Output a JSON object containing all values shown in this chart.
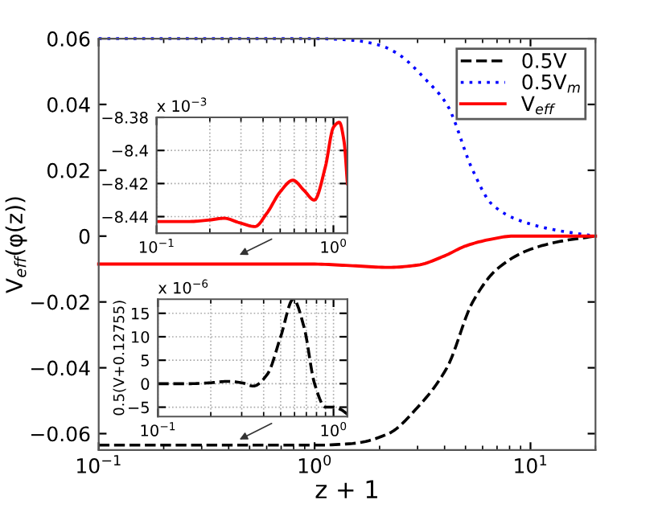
{
  "chart_data": [
    {
      "type": "line",
      "xlabel": "z + 1",
      "ylabel": "V$_{eff}$(φ(z))",
      "log": "x",
      "xlim": [
        0.1,
        20
      ],
      "ylim": [
        -0.065,
        0.06
      ],
      "xticks": [
        {
          "value": 0.1,
          "label": "10$^{−1}$"
        },
        {
          "value": 1,
          "label": "10$^{0}$"
        },
        {
          "value": 10,
          "label": "10$^{1}$"
        }
      ],
      "yticks": [
        {
          "value": -0.06,
          "label": "−0.06"
        },
        {
          "value": -0.04,
          "label": "−0.04"
        },
        {
          "value": -0.02,
          "label": "−0.02"
        },
        0,
        0.02,
        0.04,
        0.06
      ],
      "legend": "top right",
      "grid": false,
      "series": [
        {
          "name": "0.5V",
          "color": "#000000",
          "line_style": "dashed",
          "x": [
            0.1,
            1,
            1.5,
            2.2,
            3,
            4.1,
            5.4,
            7,
            10,
            14,
            20
          ],
          "values": [
            -0.0635,
            -0.0635,
            -0.063,
            -0.06,
            -0.052,
            -0.04,
            -0.02,
            -0.01,
            -0.004,
            -0.0015,
            0
          ]
        },
        {
          "name": "0.5V$_{m}$",
          "color": "#0000ff",
          "line_style": "dotted",
          "x": [
            0.1,
            1,
            1.5,
            2,
            2.4,
            3.3,
            4.1,
            5.4,
            6.6,
            8.7,
            12.7,
            20
          ],
          "values": [
            0.06,
            0.06,
            0.0595,
            0.058,
            0.0556,
            0.0473,
            0.04,
            0.02,
            0.0098,
            0.005,
            0.002,
            0
          ]
        },
        {
          "name": "V$_{eff}$",
          "color": "#ff0000",
          "line_style": "solid",
          "x": [
            0.1,
            0.5,
            1,
            1.5,
            2.2,
            3,
            4,
            5,
            6.5,
            8.3,
            20
          ],
          "values": [
            -0.0085,
            -0.0085,
            -0.0085,
            -0.009,
            -0.0095,
            -0.0088,
            -0.006,
            -0.003,
            -0.001,
            0,
            0
          ]
        }
      ]
    },
    {
      "type": "line",
      "log": "x",
      "xlim": [
        0.1,
        1.2
      ],
      "ylim": [
        -8.45,
        -8.38
      ],
      "xticks": [
        {
          "value": 0.1,
          "label": "10$^{−1}$"
        },
        {
          "value": 1,
          "label": "10$^{0}$"
        }
      ],
      "yticks": [
        {
          "value": -8.38,
          "label": "−8.38"
        },
        {
          "value": -8.4,
          "label": "−8.4"
        },
        {
          "value": -8.42,
          "label": "−8.42"
        },
        {
          "value": -8.44,
          "label": "−8.44"
        }
      ],
      "grid": true,
      "annotations": [
        "x 10$^{−3}$"
      ],
      "series": [
        {
          "color": "#ff0000",
          "line_style": "solid",
          "x": [
            0.1,
            0.15,
            0.2,
            0.24,
            0.3,
            0.36,
            0.42,
            0.5,
            0.59,
            0.68,
            0.78,
            0.9,
            1.0,
            1.08,
            1.15,
            1.2
          ],
          "values": [
            -8.443,
            -8.443,
            -8.442,
            -8.441,
            -8.444,
            -8.446,
            -8.438,
            -8.425,
            -8.418,
            -8.424,
            -8.43,
            -8.41,
            -8.386,
            -8.383,
            -8.395,
            -8.42
          ]
        }
      ]
    },
    {
      "type": "line",
      "log": "x",
      "xlim": [
        0.1,
        1.2
      ],
      "ylim": [
        -7,
        18
      ],
      "ylabel": "0.5(V+0.12755)",
      "xticks": [
        {
          "value": 0.1,
          "label": "10$^{−1}$"
        },
        {
          "value": 1,
          "label": "10$^{0}$"
        }
      ],
      "yticks": [
        {
          "value": -5,
          "label": "−5"
        },
        0,
        5,
        10,
        15
      ],
      "grid": true,
      "annotations": [
        "x 10$^{−6}$"
      ],
      "series": [
        {
          "color": "#000000",
          "line_style": "dashed",
          "x": [
            0.1,
            0.15,
            0.2,
            0.25,
            0.3,
            0.35,
            0.42,
            0.5,
            0.59,
            0.68,
            0.78,
            0.9,
            1.0,
            1.1,
            1.2
          ],
          "values": [
            0,
            0,
            0.2,
            0.5,
            0.2,
            -0.5,
            2,
            10,
            18,
            12,
            0,
            -5,
            -5,
            -5.5,
            -6.5
          ]
        }
      ]
    }
  ]
}
